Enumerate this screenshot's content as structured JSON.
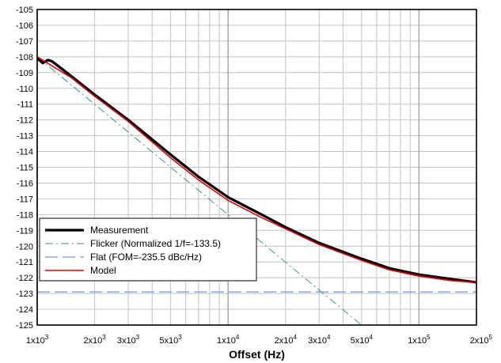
{
  "chart_data": {
    "type": "line",
    "title": "",
    "xlabel": "Offset (Hz)",
    "ylabel": "",
    "x_scale": "log",
    "xlim": [
      1000,
      200000
    ],
    "ylim": [
      -125,
      -105
    ],
    "grid": true,
    "legend_position": "bottom-left",
    "x_ticks": [
      {
        "value": 1000,
        "base": "1x10",
        "exp": "3"
      },
      {
        "value": 2000,
        "base": "2x10",
        "exp": "3"
      },
      {
        "value": 3000,
        "base": "3x10",
        "exp": "3"
      },
      {
        "value": 5000,
        "base": "5x10",
        "exp": "3"
      },
      {
        "value": 10000,
        "base": "1x10",
        "exp": "4"
      },
      {
        "value": 20000,
        "base": "2x10",
        "exp": "4"
      },
      {
        "value": 30000,
        "base": "3x10",
        "exp": "4"
      },
      {
        "value": 50000,
        "base": "5x10",
        "exp": "4"
      },
      {
        "value": 100000,
        "base": "1x10",
        "exp": "5"
      },
      {
        "value": 200000,
        "base": "2x10",
        "exp": "5"
      }
    ],
    "y_ticks": [
      -105,
      -106,
      -107,
      -108,
      -109,
      -110,
      -111,
      -112,
      -113,
      -114,
      -115,
      -116,
      -117,
      -118,
      -119,
      -120,
      -121,
      -122,
      -123,
      -124,
      -125
    ],
    "series": [
      {
        "name": "Measurement",
        "color": "#000000",
        "style": "solid-thick",
        "x": [
          1000,
          1070,
          1140,
          1200,
          1500,
          2000,
          3000,
          5000,
          7000,
          10000,
          15000,
          20000,
          30000,
          50000,
          70000,
          100000,
          150000,
          200000
        ],
        "y": [
          -108.1,
          -108.4,
          -108.2,
          -108.3,
          -109.2,
          -110.4,
          -112.0,
          -114.2,
          -115.6,
          -116.9,
          -118.0,
          -118.8,
          -119.8,
          -120.8,
          -121.4,
          -121.8,
          -122.1,
          -122.3
        ]
      },
      {
        "name": "Flicker (Normalized 1/f=-133.5)",
        "color": "#3a9a7a",
        "style": "dash-dot",
        "x": [
          1000,
          50000
        ],
        "y": [
          -108.0,
          -125.0
        ]
      },
      {
        "name": "Flat (FOM=-235.5 dBc/Hz)",
        "color": "#7a94d0",
        "style": "dashed",
        "x": [
          1000,
          200000
        ],
        "y": [
          -122.9,
          -122.9
        ]
      },
      {
        "name": "Model",
        "color": "#e00000",
        "style": "solid",
        "x": [
          1000,
          1500,
          2000,
          3000,
          5000,
          7000,
          10000,
          15000,
          20000,
          30000,
          50000,
          70000,
          100000,
          150000,
          200000
        ],
        "y": [
          -108.0,
          -109.3,
          -110.5,
          -112.1,
          -114.4,
          -115.8,
          -117.1,
          -118.2,
          -118.9,
          -119.9,
          -120.9,
          -121.5,
          -121.9,
          -122.2,
          -122.3
        ]
      }
    ]
  }
}
